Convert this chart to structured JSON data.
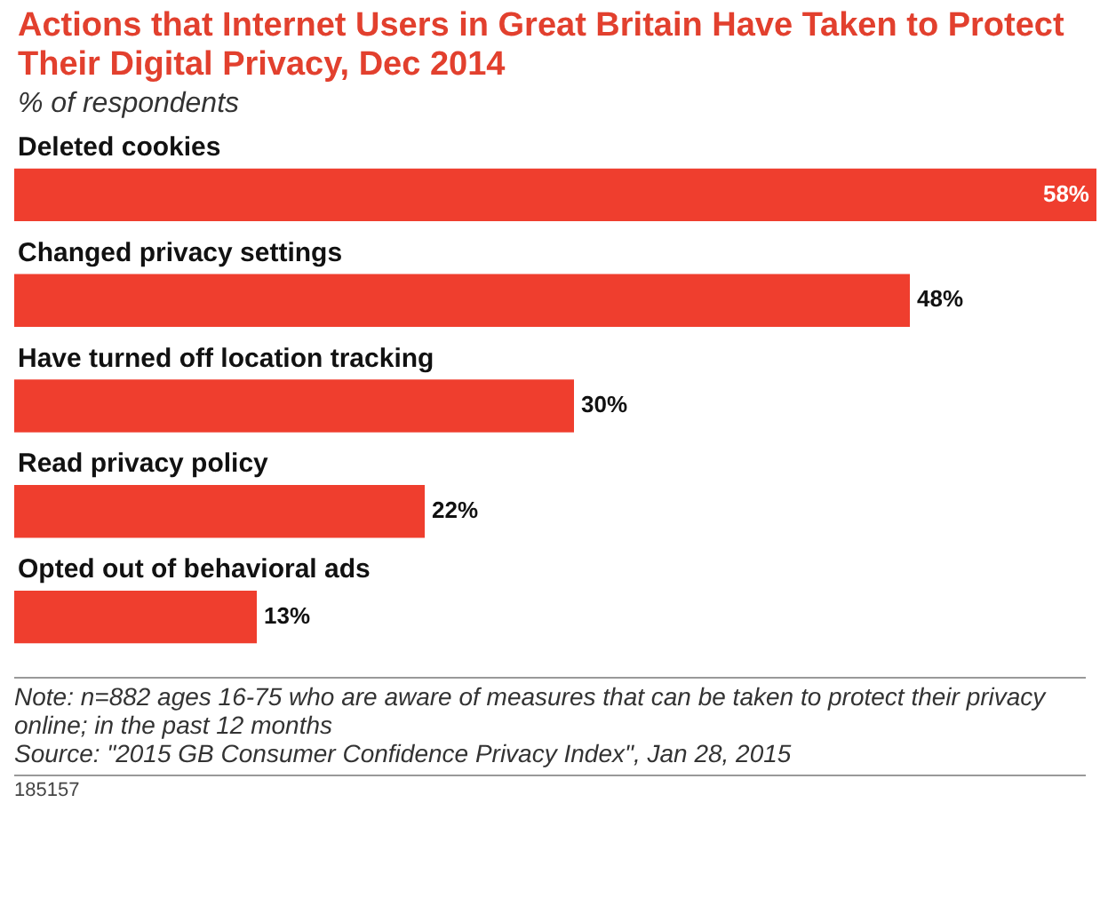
{
  "chart_data": {
    "type": "bar",
    "orientation": "horizontal",
    "title": "Actions that Internet Users in Great Britain Have Taken to Protect Their Digital Privacy, Dec 2014",
    "subtitle": "% of respondents",
    "categories": [
      "Deleted cookies",
      "Changed privacy settings",
      "Have turned off location tracking",
      "Read privacy policy",
      "Opted out of behavioral ads"
    ],
    "values": [
      58,
      48,
      30,
      22,
      13
    ],
    "value_labels": [
      "58%",
      "48%",
      "30%",
      "22%",
      "13%"
    ],
    "color": "#ef3e2e",
    "xlim": [
      0,
      58
    ],
    "legend": false,
    "annotations": [
      "Note: n=882 ages 16-75 who are aware of measures that can be taken to protect their privacy online; in the past 12 months",
      "Source: \"2015 GB Consumer Confidence Privacy Index\", Jan 28, 2015",
      "185157"
    ]
  }
}
